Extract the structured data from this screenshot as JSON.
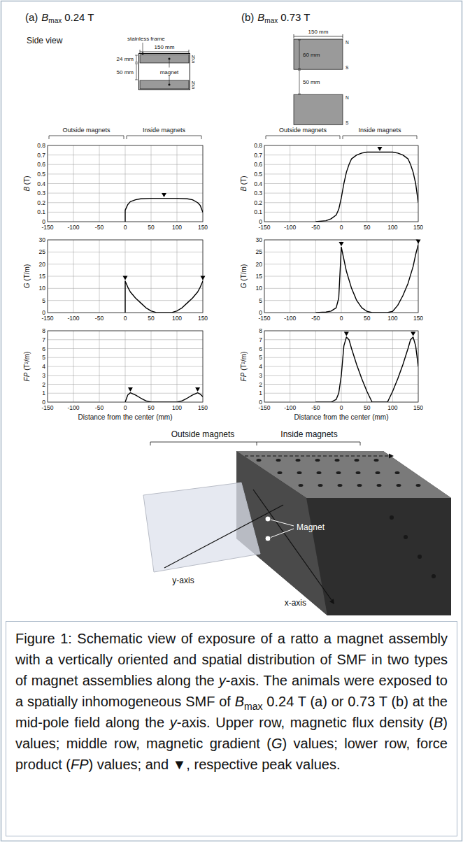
{
  "chart_data": [
    {
      "type": "line",
      "ylabel": "B (T)",
      "color": "#000000",
      "grid": true,
      "x": [
        0,
        0,
        5,
        10,
        20,
        30,
        50,
        75,
        100,
        120,
        130,
        140,
        145,
        150
      ],
      "values": [
        0,
        0.12,
        0.18,
        0.21,
        0.23,
        0.24,
        0.245,
        0.245,
        0.245,
        0.24,
        0.23,
        0.2,
        0.17,
        0.1
      ],
      "xlim": [
        -150,
        150
      ],
      "ylim": [
        0,
        0.8
      ],
      "xticks": [
        -150,
        -100,
        -50,
        0,
        50,
        100,
        150
      ],
      "yticks": [
        0,
        0.1,
        0.2,
        0.3,
        0.4,
        0.5,
        0.6,
        0.7,
        0.8
      ],
      "peaks": {
        "x": [
          75
        ],
        "values": [
          0.245
        ]
      }
    },
    {
      "type": "line",
      "ylabel": "G (T/m)",
      "color": "#000000",
      "grid": true,
      "x": [
        0,
        0,
        5,
        10,
        20,
        30,
        40,
        50,
        60,
        90,
        100,
        110,
        120,
        130,
        140,
        145,
        150
      ],
      "values": [
        0,
        13,
        10.5,
        8.5,
        6,
        4,
        2,
        0.7,
        0,
        0,
        0.7,
        2,
        4,
        6,
        8.5,
        10.5,
        13
      ],
      "xlim": [
        -150,
        150
      ],
      "ylim": [
        0,
        30
      ],
      "xticks": [
        -150,
        -100,
        -50,
        0,
        50,
        100,
        150
      ],
      "yticks": [
        0,
        5,
        10,
        15,
        20,
        25,
        30
      ],
      "peaks": {
        "x": [
          0,
          150
        ],
        "values": [
          13,
          13
        ]
      }
    },
    {
      "type": "line",
      "ylabel": "FP (T²/m)",
      "xlabel": "Distance from the center (mm)",
      "color": "#000000",
      "grid": true,
      "x": [
        0,
        5,
        10,
        20,
        30,
        40,
        50,
        60,
        90,
        100,
        110,
        120,
        130,
        140,
        145,
        150
      ],
      "values": [
        0,
        0.8,
        1.05,
        0.8,
        0.45,
        0.15,
        0,
        0,
        0,
        0,
        0.15,
        0.45,
        0.8,
        1.05,
        0.9,
        0.6
      ],
      "xlim": [
        -150,
        150
      ],
      "ylim": [
        0,
        8
      ],
      "xticks": [
        -150,
        -100,
        -50,
        0,
        50,
        100,
        150
      ],
      "yticks": [
        0,
        1,
        2,
        3,
        4,
        5,
        6,
        7,
        8
      ],
      "peaks": {
        "x": [
          10,
          140
        ],
        "values": [
          1.05,
          1.05
        ]
      }
    },
    {
      "type": "line",
      "ylabel": "B (T)",
      "color": "#000000",
      "grid": true,
      "x": [
        -50,
        -30,
        -20,
        -10,
        -5,
        0,
        5,
        10,
        15,
        20,
        30,
        40,
        50,
        75,
        100,
        110,
        120,
        130,
        135,
        140,
        145,
        150
      ],
      "values": [
        0,
        0.01,
        0.03,
        0.07,
        0.13,
        0.25,
        0.4,
        0.52,
        0.6,
        0.66,
        0.7,
        0.72,
        0.73,
        0.73,
        0.73,
        0.72,
        0.7,
        0.66,
        0.6,
        0.52,
        0.4,
        0.2
      ],
      "xlim": [
        -150,
        150
      ],
      "ylim": [
        0,
        0.8
      ],
      "xticks": [
        -150,
        -100,
        -50,
        0,
        50,
        100,
        150
      ],
      "yticks": [
        0,
        0.1,
        0.2,
        0.3,
        0.4,
        0.5,
        0.6,
        0.7,
        0.8
      ],
      "peaks": {
        "x": [
          75
        ],
        "values": [
          0.73
        ]
      }
    },
    {
      "type": "line",
      "ylabel": "G (T/m)",
      "color": "#000000",
      "grid": true,
      "x": [
        -50,
        -30,
        -20,
        -10,
        -5,
        0,
        5,
        10,
        20,
        30,
        40,
        50,
        60,
        90,
        100,
        110,
        120,
        130,
        140,
        145,
        150
      ],
      "values": [
        0,
        0.2,
        0.6,
        2,
        6,
        27,
        22,
        17,
        10,
        5,
        2,
        0.5,
        0,
        0,
        0.5,
        3,
        7,
        12,
        19,
        24,
        28
      ],
      "xlim": [
        -150,
        150
      ],
      "ylim": [
        0,
        30
      ],
      "xticks": [
        -150,
        -100,
        -50,
        0,
        50,
        100,
        150
      ],
      "yticks": [
        0,
        5,
        10,
        15,
        20,
        25,
        30
      ],
      "peaks": {
        "x": [
          0,
          150
        ],
        "values": [
          27,
          28
        ]
      }
    },
    {
      "type": "line",
      "ylabel": "FP (T²/m)",
      "xlabel": "Distance from the center (mm)",
      "color": "#000000",
      "grid": true,
      "x": [
        -50,
        -20,
        -10,
        -5,
        0,
        5,
        10,
        15,
        20,
        30,
        40,
        50,
        60,
        90,
        100,
        110,
        120,
        130,
        135,
        140,
        145,
        150
      ],
      "values": [
        0,
        0,
        0.3,
        1,
        3,
        6.3,
        7.3,
        7,
        6,
        4.2,
        2.6,
        1.2,
        0,
        0,
        1.2,
        2.6,
        4.2,
        6,
        7,
        7.3,
        6.3,
        4
      ],
      "xlim": [
        -150,
        150
      ],
      "ylim": [
        0,
        8
      ],
      "xticks": [
        -150,
        -100,
        -50,
        0,
        50,
        100,
        150
      ],
      "yticks": [
        0,
        1,
        2,
        3,
        4,
        5,
        6,
        7,
        8
      ],
      "peaks": {
        "x": [
          10,
          140
        ],
        "values": [
          7.3,
          7.3
        ]
      }
    }
  ],
  "figure": {
    "side_view": "Side view",
    "panels": [
      {
        "letter": "(a)",
        "symbol": "B",
        "subscript": "max",
        "value": "0.24 T",
        "regions": [
          "Outside magnets",
          "Inside magnets"
        ],
        "schematic": {
          "frame_label": "stainless frame",
          "magnet_label": "magnet",
          "width": {
            "value": 150,
            "label": "150 mm"
          },
          "magnet": {
            "value": 24,
            "label": "24 mm"
          },
          "gap": {
            "value": 50,
            "label": "50 mm"
          },
          "poles": [
            "N",
            "S"
          ]
        }
      },
      {
        "letter": "(b)",
        "symbol": "B",
        "subscript": "max",
        "value": "0.73 T",
        "regions": [
          "Outside magnets",
          "Inside magnets"
        ],
        "schematic": {
          "width": {
            "value": 150,
            "label": "150 mm"
          },
          "magnet": {
            "value": 60,
            "label": "60 mm"
          },
          "gap": {
            "value": 50,
            "label": "50 mm"
          },
          "poles": [
            "N",
            "S"
          ]
        }
      }
    ],
    "photo": {
      "regions": [
        "Outside magnets",
        "Inside magnets"
      ],
      "magnet_label": "Magnet",
      "y_axis": "y-axis",
      "x_axis": "x-axis"
    }
  },
  "caption": [
    {
      "text": "Figure 1: Schematic view of exposure of a ratto a magnet assembly with a vertically oriented and spatial distribution of SMF in two types of magnet assemblies along the "
    },
    {
      "text": "y",
      "style": "italic"
    },
    {
      "text": "-axis. The animals were exposed to a spatially inhomogeneous SMF of "
    },
    {
      "text": "B",
      "style": "italic"
    },
    {
      "text": "max",
      "style": "sub"
    },
    {
      "text": " 0.24 T (a) or 0.73 T (b) at the mid-pole field along the "
    },
    {
      "text": "y",
      "style": "italic"
    },
    {
      "text": "-axis. Upper row, magnetic flux density ("
    },
    {
      "text": "B",
      "style": "italic"
    },
    {
      "text": ") values; middle row, magnetic gradient ("
    },
    {
      "text": "G",
      "style": "italic"
    },
    {
      "text": ") values; lower row, force product ("
    },
    {
      "text": "FP",
      "style": "italic"
    },
    {
      "text": ") values; and ▼, respective peak values."
    }
  ]
}
